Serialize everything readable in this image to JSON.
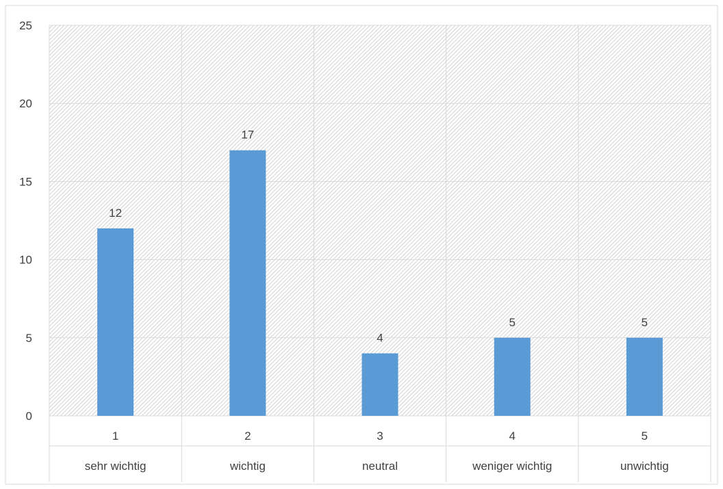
{
  "chart_data": {
    "type": "bar",
    "categories": [
      "1",
      "2",
      "3",
      "4",
      "5"
    ],
    "category_labels": [
      "sehr wichtig",
      "wichtig",
      "neutral",
      "weniger wichtig",
      "unwichtig"
    ],
    "values": [
      12,
      17,
      4,
      5,
      5
    ],
    "data_labels": [
      "12",
      "17",
      "4",
      "5",
      "5"
    ],
    "ylim": [
      0,
      25
    ],
    "yticks": [
      "0",
      "5",
      "10",
      "15",
      "20",
      "25"
    ],
    "title": "",
    "xlabel": "",
    "ylabel": "",
    "grid": true,
    "legend": "none",
    "bar_color": "#5B9BD5",
    "plot_fill": "hatched-gray"
  }
}
